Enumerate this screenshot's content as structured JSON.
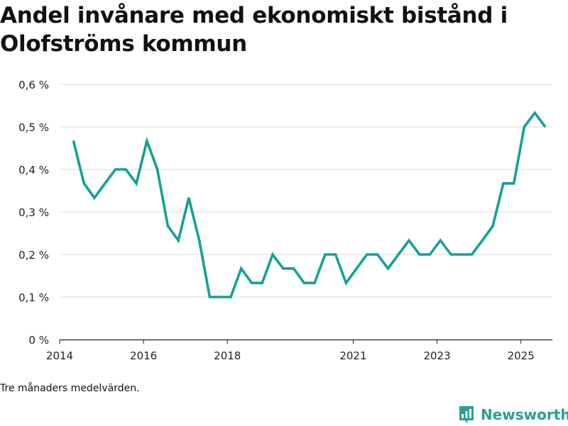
{
  "title": "Andel invånare med ekonomiskt bistånd i Olofströms kommun",
  "note": "Tre månaders medelvärden.",
  "brand": {
    "name": "Newsworthy",
    "icon": "bar-chart-logo-icon",
    "color": "#2d9e94"
  },
  "chart_data": {
    "type": "line",
    "title": "Andel invånare med ekonomiskt bistånd i Olofströms kommun",
    "xlabel": "",
    "ylabel": "",
    "ylim": [
      0,
      0.6
    ],
    "yticks": [
      {
        "value": 0,
        "label": "0 %"
      },
      {
        "value": 0.1,
        "label": "0,1 %"
      },
      {
        "value": 0.2,
        "label": "0,2 %"
      },
      {
        "value": 0.3,
        "label": "0,3 %"
      },
      {
        "value": 0.4,
        "label": "0,4 %"
      },
      {
        "value": 0.5,
        "label": "0,5 %"
      },
      {
        "value": 0.6,
        "label": "0,6 %"
      }
    ],
    "xlim": [
      2014.0,
      2025.75
    ],
    "xticks": [
      {
        "value": 2014,
        "label": "2014"
      },
      {
        "value": 2016,
        "label": "2016"
      },
      {
        "value": 2018,
        "label": "2018"
      },
      {
        "value": 2021,
        "label": "2021"
      },
      {
        "value": 2023,
        "label": "2023"
      },
      {
        "value": 2025,
        "label": "2025"
      }
    ],
    "grid": true,
    "line_color": "#14a196",
    "series": [
      {
        "name": "Andel invånare med ekonomiskt bistånd",
        "x": [
          2014.33,
          2014.58,
          2014.83,
          2015.08,
          2015.33,
          2015.58,
          2015.83,
          2016.08,
          2016.33,
          2016.58,
          2016.83,
          2017.08,
          2017.33,
          2017.58,
          2017.83,
          2018.08,
          2018.33,
          2018.58,
          2018.83,
          2019.08,
          2019.33,
          2019.58,
          2019.83,
          2020.08,
          2020.33,
          2020.58,
          2020.83,
          2021.08,
          2021.33,
          2021.58,
          2021.83,
          2022.08,
          2022.33,
          2022.58,
          2022.83,
          2023.08,
          2023.33,
          2023.58,
          2023.83,
          2024.08,
          2024.33,
          2024.58,
          2024.83,
          2025.08,
          2025.33,
          2025.58
        ],
        "values": [
          0.467,
          0.367,
          0.333,
          0.367,
          0.4,
          0.4,
          0.367,
          0.467,
          0.4,
          0.267,
          0.233,
          0.333,
          0.233,
          0.1,
          0.1,
          0.1,
          0.167,
          0.133,
          0.133,
          0.2,
          0.167,
          0.167,
          0.133,
          0.133,
          0.2,
          0.2,
          0.133,
          0.167,
          0.2,
          0.2,
          0.167,
          0.2,
          0.233,
          0.2,
          0.2,
          0.233,
          0.2,
          0.2,
          0.2,
          0.233,
          0.267,
          0.367,
          0.367,
          0.5,
          0.533,
          0.5
        ]
      }
    ]
  }
}
